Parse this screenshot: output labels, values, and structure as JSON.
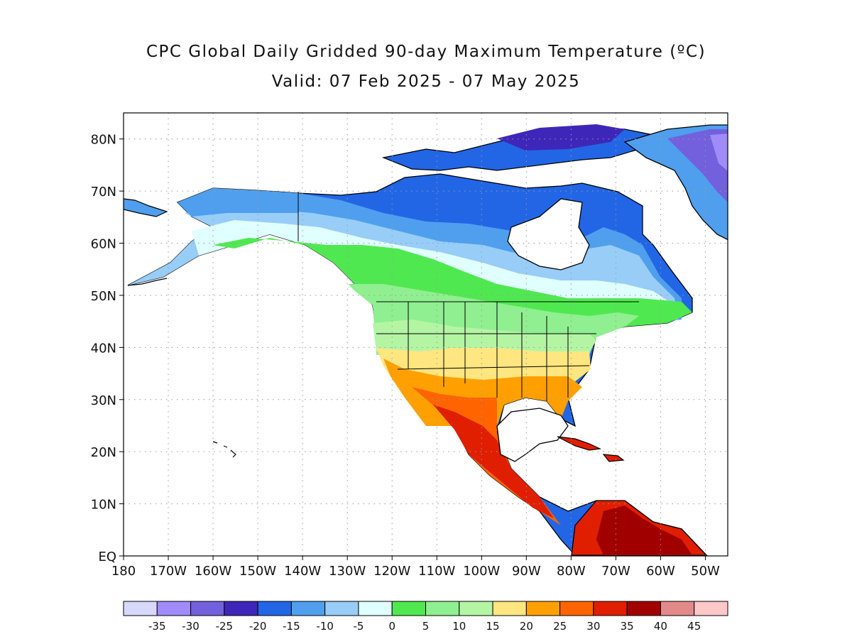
{
  "header": {
    "title": "CPC Global Daily Gridded 90-day Maximum Temperature (ºC)",
    "subtitle": "Valid: 07 Feb 2025 - 07 May 2025"
  },
  "map": {
    "region": "North America",
    "lat_ticks": [
      {
        "value": 80,
        "label": "80N"
      },
      {
        "value": 70,
        "label": "70N"
      },
      {
        "value": 60,
        "label": "60N"
      },
      {
        "value": 50,
        "label": "50N"
      },
      {
        "value": 40,
        "label": "40N"
      },
      {
        "value": 30,
        "label": "30N"
      },
      {
        "value": 20,
        "label": "20N"
      },
      {
        "value": 10,
        "label": "10N"
      },
      {
        "value": 0,
        "label": "EQ"
      }
    ],
    "lon_ticks": [
      {
        "value": -180,
        "label": "180"
      },
      {
        "value": -170,
        "label": "170W"
      },
      {
        "value": -160,
        "label": "160W"
      },
      {
        "value": -150,
        "label": "150W"
      },
      {
        "value": -140,
        "label": "140W"
      },
      {
        "value": -130,
        "label": "130W"
      },
      {
        "value": -120,
        "label": "120W"
      },
      {
        "value": -110,
        "label": "110W"
      },
      {
        "value": -100,
        "label": "100W"
      },
      {
        "value": -90,
        "label": "90W"
      },
      {
        "value": -80,
        "label": "80W"
      },
      {
        "value": -70,
        "label": "70W"
      },
      {
        "value": -60,
        "label": "60W"
      },
      {
        "value": -50,
        "label": "50W"
      }
    ],
    "lon_range": [
      -180,
      -45
    ],
    "lat_range": [
      0,
      85
    ],
    "grid": "dotted"
  },
  "colorbar": {
    "labels": [
      "-35",
      "-30",
      "-25",
      "-20",
      "-15",
      "-10",
      "-5",
      "0",
      "5",
      "10",
      "15",
      "20",
      "25",
      "30",
      "35",
      "40",
      "45"
    ],
    "colors": [
      "#d8d8fb",
      "#a08cf8",
      "#7360dc",
      "#3e27b8",
      "#2266e6",
      "#4f9fee",
      "#98cdf8",
      "#e0ffff",
      "#50e850",
      "#90ef90",
      "#b4f5a4",
      "#ffe680",
      "#ffa000",
      "#ff6400",
      "#e01e00",
      "#a00000",
      "#e28a8a",
      "#ffc8c8"
    ]
  }
}
